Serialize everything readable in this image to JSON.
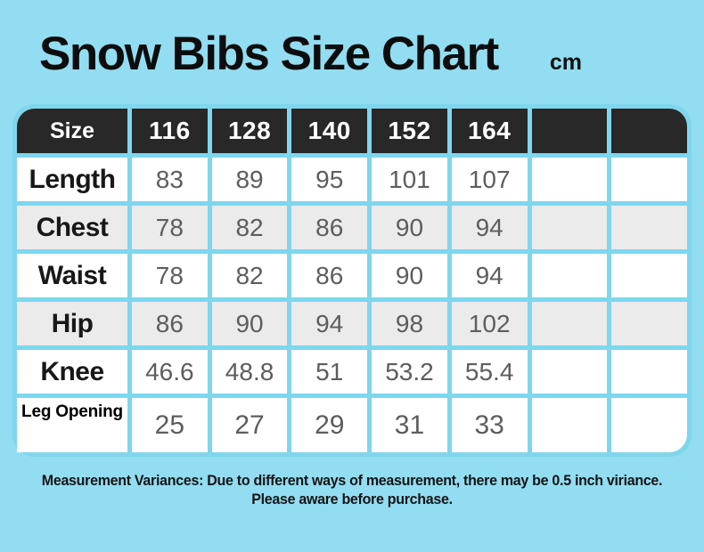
{
  "page": {
    "title": "Snow Bibs Size Chart",
    "unit": "cm",
    "colors": {
      "background": "#92ddf1",
      "gridline": "#7fd6ed",
      "header_bg": "#282828",
      "header_text": "#ffffff",
      "alt_row_bg": "#ebebeb",
      "row_bg": "#ffffff",
      "value_text": "#5d5d5d",
      "label_text": "#181818"
    }
  },
  "table": {
    "header": [
      "Size",
      "116",
      "128",
      "140",
      "152",
      "164",
      "",
      ""
    ],
    "rows": [
      {
        "label": "Length",
        "values": [
          "83",
          "89",
          "95",
          "101",
          "107",
          "",
          ""
        ]
      },
      {
        "label": "Chest",
        "values": [
          "78",
          "82",
          "86",
          "90",
          "94",
          "",
          ""
        ]
      },
      {
        "label": "Waist",
        "values": [
          "78",
          "82",
          "86",
          "90",
          "94",
          "",
          ""
        ]
      },
      {
        "label": "Hip",
        "values": [
          "86",
          "90",
          "94",
          "98",
          "102",
          "",
          ""
        ]
      },
      {
        "label": "Knee",
        "values": [
          "46.6",
          "48.8",
          "51",
          "53.2",
          "55.4",
          "",
          ""
        ]
      },
      {
        "label": "Leg Opening",
        "values": [
          "25",
          "27",
          "29",
          "31",
          "33",
          "",
          ""
        ]
      }
    ]
  },
  "footer": {
    "line1": "Measurement Variances: Due to different ways of measurement, there may be 0.5 inch viriance.",
    "line2": "Please aware before purchase."
  },
  "chart_data": {
    "type": "table",
    "title": "Snow Bibs Size Chart",
    "unit": "cm",
    "columns": [
      "Size",
      "116",
      "128",
      "140",
      "152",
      "164"
    ],
    "rows": [
      {
        "label": "Length",
        "values": [
          83,
          89,
          95,
          101,
          107
        ]
      },
      {
        "label": "Chest",
        "values": [
          78,
          82,
          86,
          90,
          94
        ]
      },
      {
        "label": "Waist",
        "values": [
          78,
          82,
          86,
          90,
          94
        ]
      },
      {
        "label": "Hip",
        "values": [
          86,
          90,
          94,
          98,
          102
        ]
      },
      {
        "label": "Knee",
        "values": [
          46.6,
          48.8,
          51,
          53.2,
          55.4
        ]
      },
      {
        "label": "Leg Opening",
        "values": [
          25,
          27,
          29,
          31,
          33
        ]
      }
    ],
    "notes": [
      "Measurement Variances: Due to different ways of measurement, there may be 0.5 inch viriance.",
      "Please aware before purchase."
    ]
  }
}
